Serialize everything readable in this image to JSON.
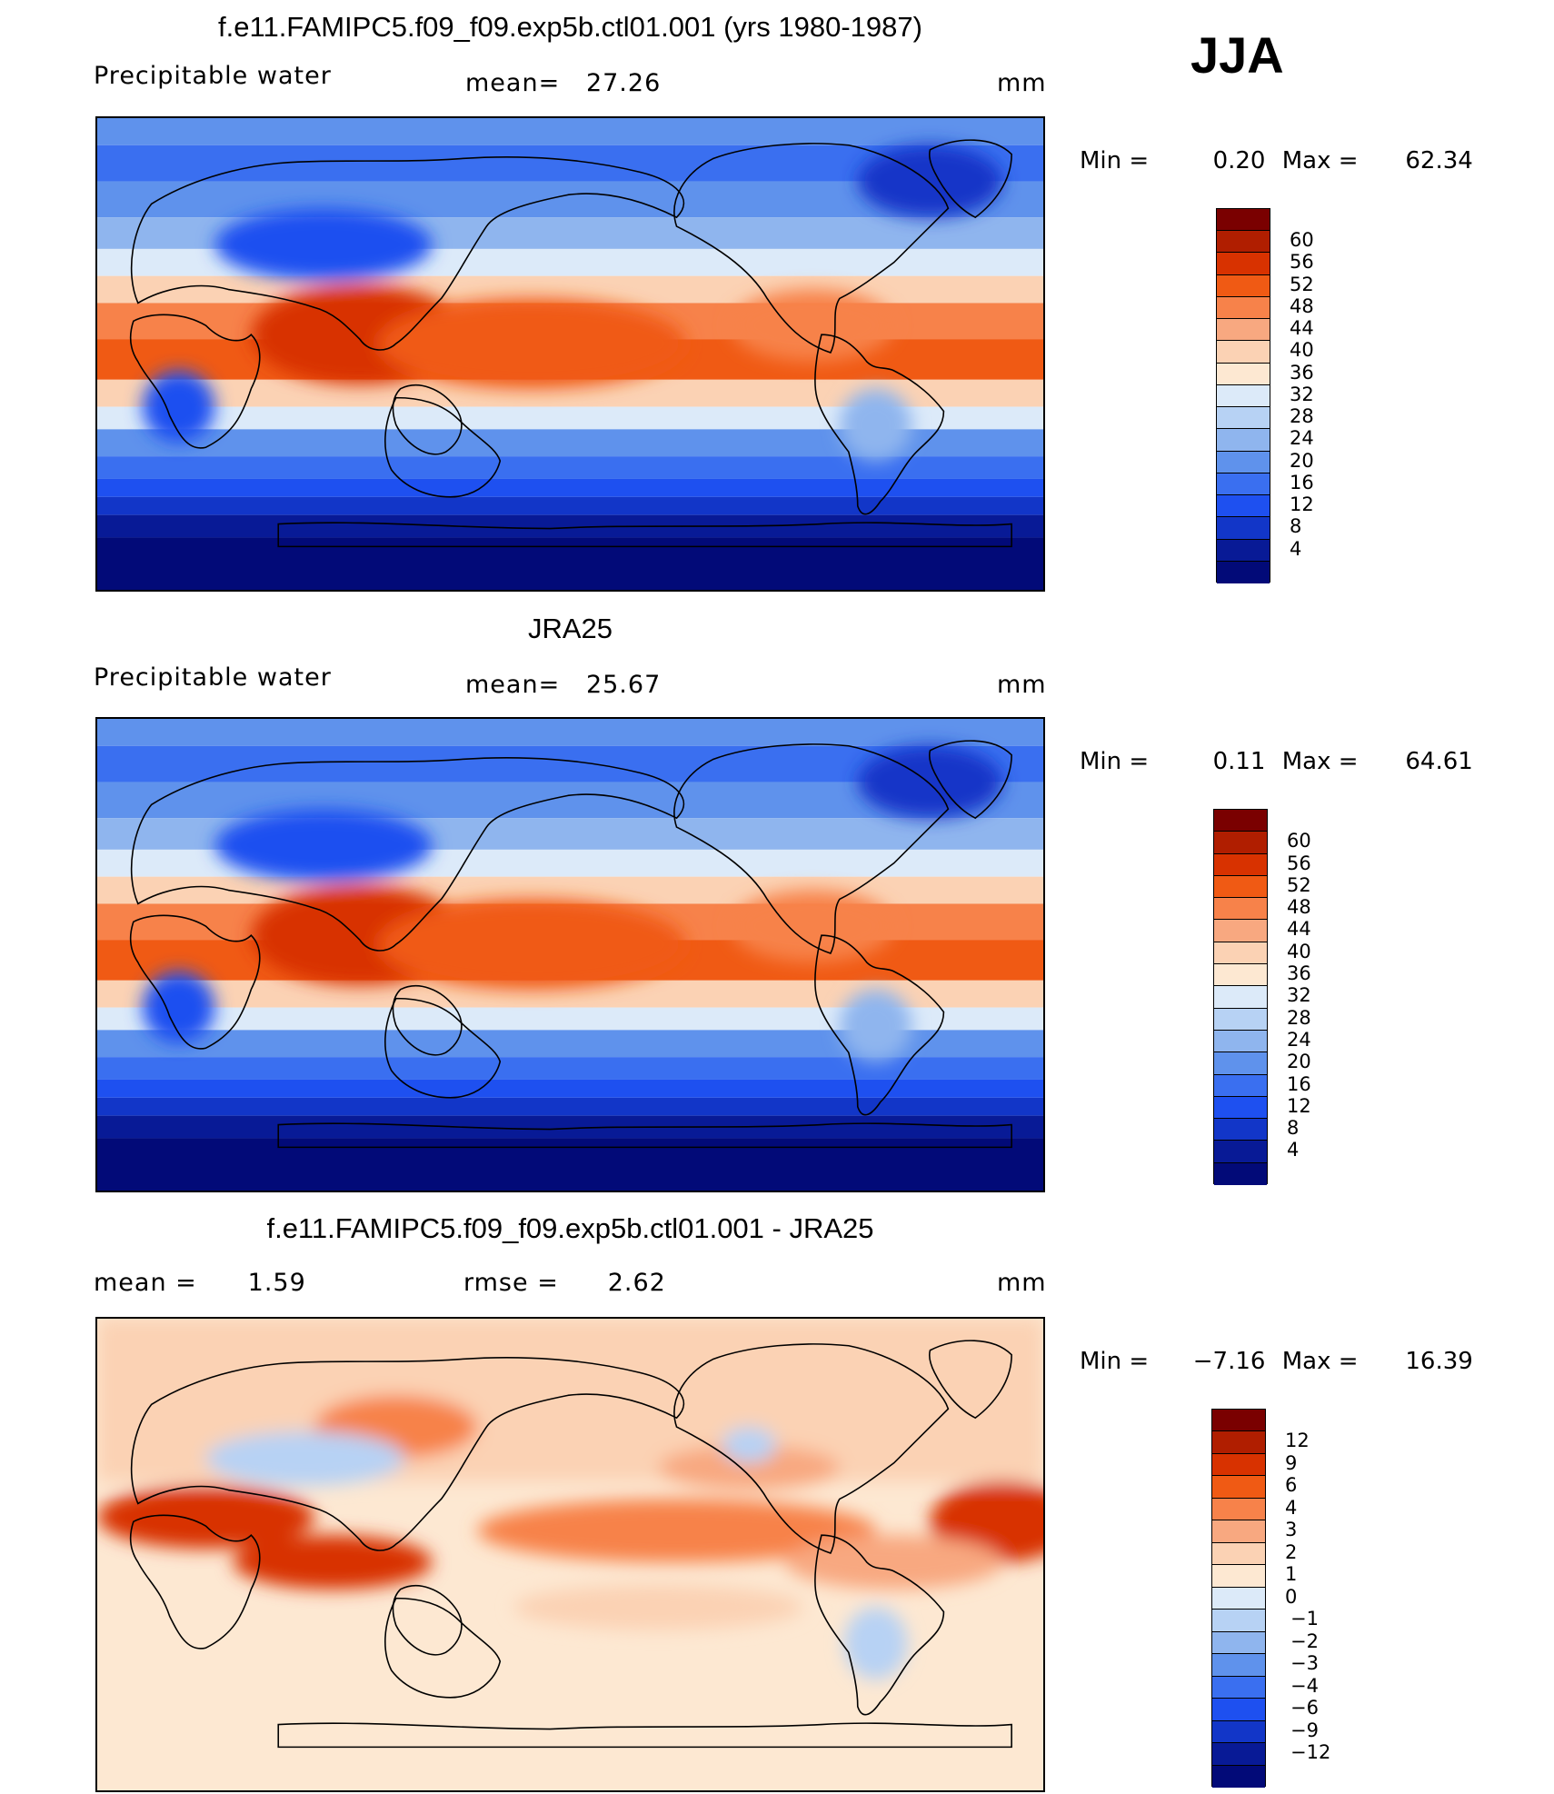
{
  "season": "JJA",
  "panels": [
    {
      "id": "model",
      "title": "f.e11.FAMIPC5.f09_f09.exp5b.ctl01.001 (yrs 1980-1987)",
      "left_label": "Precipitable  water",
      "stat_label": "mean=",
      "stat_value": "27.26",
      "stat2_label": "",
      "stat2_value": "",
      "units": "mm",
      "min_label": "Min  =",
      "min_value": "0.20",
      "max_label": "Max  =",
      "max_value": "62.34",
      "colorbar": {
        "colors": [
          "#7a0000",
          "#b01e00",
          "#d83200",
          "#f05a14",
          "#f7824a",
          "#f8a880",
          "#fbd2b4",
          "#fde8d2",
          "#dceaf9",
          "#b7d2f4",
          "#8fb5ee",
          "#5f92ec",
          "#3a6ff0",
          "#1e50f0",
          "#1236c8",
          "#081a96",
          "#020a78"
        ],
        "ticks": [
          "60",
          "56",
          "52",
          "48",
          "44",
          "40",
          "36",
          "32",
          "28",
          "24",
          "20",
          "16",
          "12",
          "8",
          "4"
        ]
      }
    },
    {
      "id": "obs",
      "title": "JRA25",
      "left_label": "Precipitable  water",
      "stat_label": "mean=",
      "stat_value": "25.67",
      "stat2_label": "",
      "stat2_value": "",
      "units": "mm",
      "min_label": "Min  =",
      "min_value": "0.11",
      "max_label": "Max  =",
      "max_value": "64.61",
      "colorbar": {
        "colors": [
          "#7a0000",
          "#b01e00",
          "#d83200",
          "#f05a14",
          "#f7824a",
          "#f8a880",
          "#fbd2b4",
          "#fde8d2",
          "#dceaf9",
          "#b7d2f4",
          "#8fb5ee",
          "#5f92ec",
          "#3a6ff0",
          "#1e50f0",
          "#1236c8",
          "#081a96",
          "#020a78"
        ],
        "ticks": [
          "60",
          "56",
          "52",
          "48",
          "44",
          "40",
          "36",
          "32",
          "28",
          "24",
          "20",
          "16",
          "12",
          "8",
          "4"
        ]
      }
    },
    {
      "id": "diff",
      "title": "f.e11.FAMIPC5.f09_f09.exp5b.ctl01.001 - JRA25",
      "left_label": "mean  =",
      "stat_label": "",
      "stat_value": "1.59",
      "stat2_label": "rmse  =",
      "stat2_value": "2.62",
      "units": "mm",
      "min_label": "Min  =",
      "min_value": "−7.16",
      "max_label": "Max  =",
      "max_value": "16.39",
      "colorbar": {
        "colors": [
          "#7a0000",
          "#b01e00",
          "#d83200",
          "#f05a14",
          "#f7824a",
          "#f8a880",
          "#fbd2b4",
          "#fde8d2",
          "#dceaf9",
          "#b7d2f4",
          "#8fb5ee",
          "#5f92ec",
          "#3a6ff0",
          "#1e50f0",
          "#1236c8",
          "#081a96",
          "#020a78"
        ],
        "ticks": [
          "12",
          "9",
          "6",
          "4",
          "3",
          "2",
          "1",
          "0",
          "−1",
          "−2",
          "−3",
          "−4",
          "−6",
          "−9",
          "−12"
        ]
      }
    }
  ],
  "map_fields": {
    "model_bands": [
      "#020a78",
      "#081a96",
      "#1236c8",
      "#1e50f0",
      "#3a6ff0",
      "#5f92ec",
      "#8fb5ee",
      "#dceaf9",
      "#fbd2b4",
      "#f7824a",
      "#f05a14",
      "#d83200"
    ],
    "diff_bands": [
      "#fde8d2",
      "#fbd2b4",
      "#f8a880",
      "#fde8d2",
      "#b7d2f4",
      "#f7824a",
      "#d83200",
      "#f8a880",
      "#fbd2b4"
    ]
  }
}
